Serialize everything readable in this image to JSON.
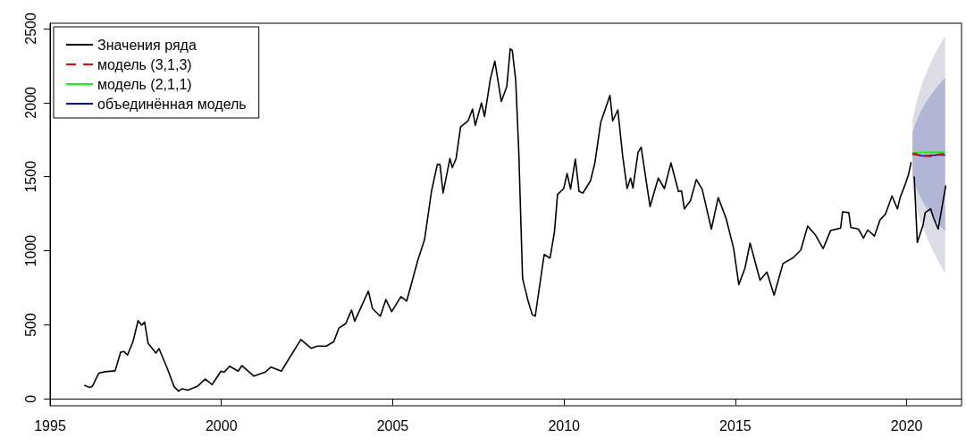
{
  "chart_data": {
    "type": "line",
    "xlim": [
      1995,
      2021.6
    ],
    "ylim": [
      -46,
      2536
    ],
    "xticks": [
      1995,
      2000,
      2005,
      2010,
      2015,
      2020
    ],
    "yticks": [
      0,
      500,
      1000,
      1500,
      2000,
      2500
    ],
    "legend": "top left",
    "marker": "none",
    "line_style": "solid",
    "series": [
      {
        "name": "Значения ряда",
        "color": "#000000",
        "x": [
          1996.0,
          1996.16,
          1996.24,
          1996.42,
          1996.61,
          1996.9,
          1997.06,
          1997.16,
          1997.26,
          1997.42,
          1997.57,
          1997.67,
          1997.76,
          1997.86,
          1998.09,
          1998.18,
          1998.44,
          1998.62,
          1998.75,
          1998.86,
          1999.02,
          1999.31,
          1999.53,
          1999.73,
          1999.99,
          2000.08,
          2000.24,
          2000.49,
          2000.6,
          2000.95,
          2001.27,
          2001.45,
          2001.75,
          2002.01,
          2002.32,
          2002.62,
          2002.8,
          2003.06,
          2003.28,
          2003.43,
          2003.63,
          2003.8,
          2003.89,
          2004.29,
          2004.41,
          2004.64,
          2004.8,
          2004.97,
          2005.24,
          2005.41,
          2005.73,
          2005.93,
          2006.13,
          2006.3,
          2006.38,
          2006.47,
          2006.67,
          2006.74,
          2006.85,
          2006.98,
          2007.2,
          2007.33,
          2007.41,
          2007.59,
          2007.68,
          2007.85,
          2007.98,
          2008.17,
          2008.33,
          2008.43,
          2008.49,
          2008.59,
          2008.68,
          2008.79,
          2008.94,
          2009.07,
          2009.16,
          2009.42,
          2009.59,
          2009.72,
          2009.81,
          2009.99,
          2010.09,
          2010.19,
          2010.33,
          2010.44,
          2010.55,
          2010.77,
          2010.9,
          2011.07,
          2011.34,
          2011.42,
          2011.57,
          2011.71,
          2011.84,
          2011.94,
          2012.01,
          2012.16,
          2012.25,
          2012.51,
          2012.75,
          2012.93,
          2013.12,
          2013.34,
          2013.43,
          2013.51,
          2013.69,
          2013.86,
          2014.03,
          2014.3,
          2014.5,
          2014.73,
          2014.95,
          2015.1,
          2015.28,
          2015.43,
          2015.72,
          2015.92,
          2016.13,
          2016.39,
          2016.69,
          2016.91,
          2017.11,
          2017.34,
          2017.56,
          2017.78,
          2018.07,
          2018.13,
          2018.31,
          2018.37,
          2018.59,
          2018.74,
          2018.86,
          2019.06,
          2019.22,
          2019.38,
          2019.57,
          2019.73,
          2019.81,
          2019.96,
          2020.05,
          2020.13,
          2020.17,
          2020.22,
          2020.31,
          2020.48,
          2020.54,
          2020.7,
          2020.79,
          2020.92,
          2021.14
        ],
        "values": [
          93,
          77,
          87,
          174,
          184,
          190,
          316,
          320,
          296,
          387,
          529,
          498,
          519,
          377,
          310,
          340,
          195,
          83,
          53,
          69,
          59,
          87,
          134,
          97,
          188,
          180,
          221,
          188,
          225,
          154,
          180,
          215,
          188,
          286,
          401,
          342,
          357,
          357,
          387,
          478,
          509,
          600,
          525,
          728,
          610,
          559,
          671,
          590,
          691,
          661,
          934,
          1076,
          1400,
          1582,
          1582,
          1390,
          1623,
          1562,
          1623,
          1836,
          1877,
          1957,
          1846,
          1998,
          1907,
          2160,
          2281,
          2008,
          2109,
          2363,
          2353,
          2150,
          1664,
          813,
          671,
          570,
          559,
          975,
          950,
          1126,
          1380,
          1420,
          1522,
          1416,
          1619,
          1400,
          1390,
          1471,
          1593,
          1866,
          2049,
          1877,
          1951,
          1643,
          1420,
          1491,
          1424,
          1664,
          1700,
          1299,
          1491,
          1420,
          1593,
          1400,
          1404,
          1283,
          1339,
          1481,
          1416,
          1147,
          1360,
          1218,
          1015,
          772,
          883,
          1052,
          802,
          857,
          701,
          914,
          954,
          1005,
          1167,
          1106,
          1015,
          1137,
          1153,
          1263,
          1258,
          1157,
          1147,
          1086,
          1141,
          1100,
          1208,
          1248,
          1370,
          1283,
          1360,
          1451,
          1512,
          1599,
          null,
          1501,
          1056,
          1177,
          1258,
          1283,
          1218,
          1147,
          1441
        ]
      },
      {
        "name": "модель (3,1,3)",
        "color": "#ff0000",
        "line_style": "dashed",
        "x": [
          2020.17,
          2020.26,
          2020.34,
          2020.43,
          2020.51,
          2020.6,
          2020.69,
          2020.77,
          2020.86,
          2020.94,
          2021.03,
          2021.12
        ],
        "values": [
          1650,
          1655,
          1645,
          1647,
          1642,
          1640,
          1638,
          1642,
          1648,
          1650,
          1652,
          1652
        ],
        "lower": [
          1419,
          1323,
          1250,
          1188,
          1134,
          1084,
          1039,
          997,
          957,
          920,
          884,
          850
        ],
        "upper": [
          1881,
          1977,
          2050,
          2112,
          2166,
          2216,
          2261,
          2303,
          2343,
          2380,
          2416,
          2450
        ]
      },
      {
        "name": "модель (2,1,1)",
        "color": "#00ff00",
        "x": [
          2020.17,
          2020.26,
          2020.34,
          2020.43,
          2020.51,
          2020.6,
          2020.69,
          2020.77,
          2020.86,
          2020.94,
          2021.03,
          2021.12
        ],
        "values": [
          1662,
          1663,
          1664,
          1664,
          1665,
          1665,
          1665,
          1665,
          1665,
          1665,
          1665,
          1665
        ]
      },
      {
        "name": "объединённая модель",
        "color": "#0000ff",
        "x": [
          2020.17,
          2020.26,
          2020.34,
          2020.43,
          2020.51,
          2020.6,
          2020.69,
          2020.77,
          2020.86,
          2020.94,
          2021.03,
          2021.12
        ],
        "values": [
          1655,
          1650,
          1647,
          1642,
          1640,
          1642,
          1644,
          1645,
          1646,
          1647,
          1647,
          1647
        ],
        "lower": [
          1501,
          1439,
          1391,
          1352,
          1316,
          1284,
          1255,
          1228,
          1202,
          1178,
          1155,
          1133
        ],
        "upper": [
          1799,
          1861,
          1909,
          1948,
          1984,
          2016,
          2045,
          2072,
          2098,
          2122,
          2145,
          2167
        ]
      }
    ]
  }
}
